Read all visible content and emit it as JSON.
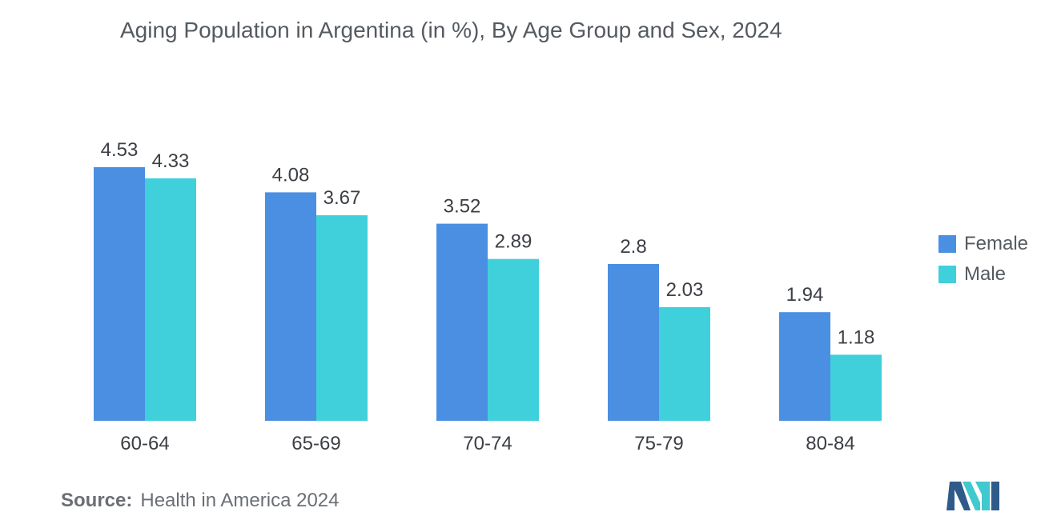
{
  "chart_data": {
    "type": "bar",
    "title": "Aging Population in Argentina (in %), By Age Group and Sex, 2024",
    "categories": [
      "60-64",
      "65-69",
      "70-74",
      "75-79",
      "80-84"
    ],
    "series": [
      {
        "name": "Female",
        "values": [
          4.53,
          4.08,
          3.52,
          2.8,
          1.94
        ],
        "color": "#4a8fe2"
      },
      {
        "name": "Male",
        "values": [
          4.33,
          3.67,
          2.89,
          2.03,
          1.18
        ],
        "color": "#40d0db"
      }
    ],
    "value_labels": [
      [
        "4.53",
        "4.08",
        "3.52",
        "2.8",
        "1.94"
      ],
      [
        "4.33",
        "3.67",
        "2.89",
        "2.03",
        "1.18"
      ]
    ],
    "ylim": [
      0,
      4.9
    ],
    "grid": false,
    "legend_position": "right"
  },
  "source": {
    "label": "Source:",
    "text": "Health in America 2024"
  },
  "logo": {
    "icon": "mordor-logo-icon",
    "colors": [
      "#2e5b8a",
      "#40c9cf"
    ]
  }
}
